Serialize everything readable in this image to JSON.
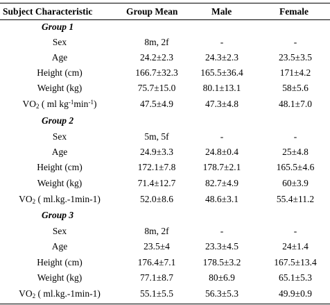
{
  "headers": {
    "subject": "Subject Characteristic",
    "group_mean": "Group Mean",
    "male": "Male",
    "female": "Female"
  },
  "groups": [
    {
      "title": "Group 1",
      "rows": [
        {
          "label": "Sex",
          "mean": "8m, 2f",
          "male": "-",
          "female": "-"
        },
        {
          "label": "Age",
          "mean": "24.2±2.3",
          "male": "24.3±2.3",
          "female": "23.5±3.5"
        },
        {
          "label": "Height (cm)",
          "mean": "166.7±32.3",
          "male": "165.5±36.4",
          "female": "171±4.2"
        },
        {
          "label": "Weight (kg)",
          "mean": "75.7±15.0",
          "male": "80.1±13.1",
          "female": "58±5.6"
        },
        {
          "label_main": "VO",
          "label_sub": "2",
          "label_rest": " ( ml kg",
          "label_sup1": "-1",
          "label_mid": "min",
          "label_sup2": "-1",
          "label_end": ")",
          "mean": "47.5±4.9",
          "male": "47.3±4.8",
          "female": "48.1±7.0"
        }
      ]
    },
    {
      "title": "Group 2",
      "rows": [
        {
          "label": "Sex",
          "mean": "5m, 5f",
          "male": "-",
          "female": "-"
        },
        {
          "label": "Age",
          "mean": "24.9±3.3",
          "male": "24.8±0.4",
          "female": "25±4.8"
        },
        {
          "label": "Height (cm)",
          "mean": "172.1±7.8",
          "male": "178.7±2.1",
          "female": "165.5±4.6"
        },
        {
          "label": "Weight (kg)",
          "mean": "71.4±12.7",
          "male": "82.7±4.9",
          "female": "60±3.9"
        },
        {
          "label_main": "VO",
          "label_sub": "2",
          "label_rest": " ( ml.kg.-1min-1)",
          "mean": "52.0±8.6",
          "male": "48.6±3.1",
          "female": "55.4±11.2"
        }
      ]
    },
    {
      "title": "Group 3",
      "rows": [
        {
          "label": "Sex",
          "mean": "8m, 2f",
          "male": "-",
          "female": "-"
        },
        {
          "label": "Age",
          "mean": "23.5±4",
          "male": "23.3±4.5",
          "female": "24±1.4"
        },
        {
          "label": "Height (cm)",
          "mean": "176.4±7.1",
          "male": "178.5±3.2",
          "female": "167.5±13.4"
        },
        {
          "label": "Weight (kg)",
          "mean": "77.1±8.7",
          "male": "80±6.9",
          "female": "65.1±5.3"
        },
        {
          "label_main": "VO",
          "label_sub": "2",
          "label_rest": " ( ml.kg.-1min-1)",
          "mean": "55.1±5.5",
          "male": "56.3±5.3",
          "female": "49.9±0.9"
        }
      ]
    }
  ]
}
